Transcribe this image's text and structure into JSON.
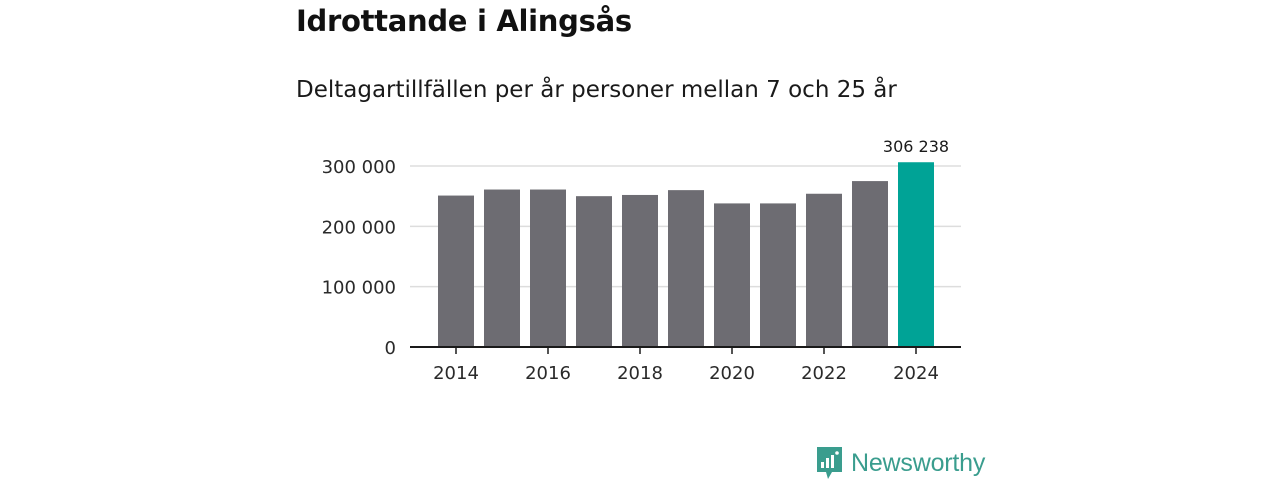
{
  "title": "Idrottande i Alingsås",
  "subtitle": "Deltagartillfällen per år personer mellan 7 och 25 år",
  "brand": {
    "name": "Newsworthy",
    "icon": "bar-chart-logo-icon",
    "color": "#3a9d8e"
  },
  "colors": {
    "bar": "#6d6c72",
    "highlight": "#00a396",
    "grid": "#dddddd",
    "axis": "#1a1a1a"
  },
  "chart_data": {
    "type": "bar",
    "categories": [
      "2014",
      "2015",
      "2016",
      "2017",
      "2018",
      "2019",
      "2020",
      "2021",
      "2022",
      "2023",
      "2024"
    ],
    "values": [
      251000,
      261000,
      261000,
      250000,
      252000,
      260000,
      238000,
      238000,
      254000,
      275000,
      306238
    ],
    "highlight_index": 10,
    "data_labels": [
      {
        "index": 10,
        "text": "306 238"
      }
    ],
    "x_tick_labels": [
      "2014",
      "2016",
      "2018",
      "2020",
      "2022",
      "2024"
    ],
    "y_ticks": [
      0,
      100000,
      200000,
      300000
    ],
    "y_tick_labels": [
      "0",
      "100 000",
      "200 000",
      "300 000"
    ],
    "ylim": [
      0,
      300000
    ],
    "grid": true,
    "legend": "none",
    "xlabel": "",
    "ylabel": ""
  }
}
